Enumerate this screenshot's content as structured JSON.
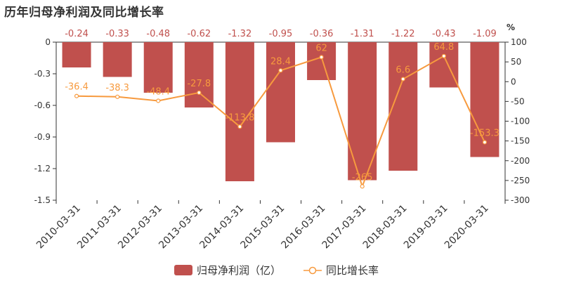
{
  "title": "历年归母净利润及同比增长率",
  "colors": {
    "bar": "#c0504d",
    "line": "#f79a3e",
    "bar_label": "#c0504d",
    "line_label": "#f79a3e",
    "axis": "#333333"
  },
  "chart_data": {
    "type": "bar",
    "title": "历年归母净利润及同比增长率",
    "categories": [
      "2010-03-31",
      "2011-03-31",
      "2012-03-31",
      "2013-03-31",
      "2014-03-31",
      "2015-03-31",
      "2016-03-31",
      "2017-03-31",
      "2018-03-31",
      "2019-03-31",
      "2020-03-31"
    ],
    "series": [
      {
        "name": "归母净利润（亿）",
        "type": "bar",
        "axis": "left",
        "values": [
          -0.24,
          -0.33,
          -0.48,
          -0.62,
          -1.32,
          -0.95,
          -0.36,
          -1.31,
          -1.22,
          -0.43,
          -1.09
        ]
      },
      {
        "name": "同比增长率",
        "type": "line",
        "axis": "right",
        "values": [
          -36.4,
          -38.3,
          -48.4,
          -27.8,
          -113.8,
          28.4,
          62,
          -265,
          6.6,
          64.8,
          -153.3
        ]
      }
    ],
    "left_axis": {
      "min": -1.5,
      "max": 0,
      "ticks": [
        "0",
        "-0.3",
        "-0.6",
        "-0.9",
        "-1.2",
        "-1.5"
      ]
    },
    "right_axis": {
      "min": -300,
      "max": 100,
      "unit": "%",
      "ticks": [
        "100",
        "50",
        "0",
        "-50",
        "-100",
        "-150",
        "-200",
        "-250",
        "-300"
      ]
    },
    "legend": {
      "position": "bottom"
    },
    "grid": false
  }
}
